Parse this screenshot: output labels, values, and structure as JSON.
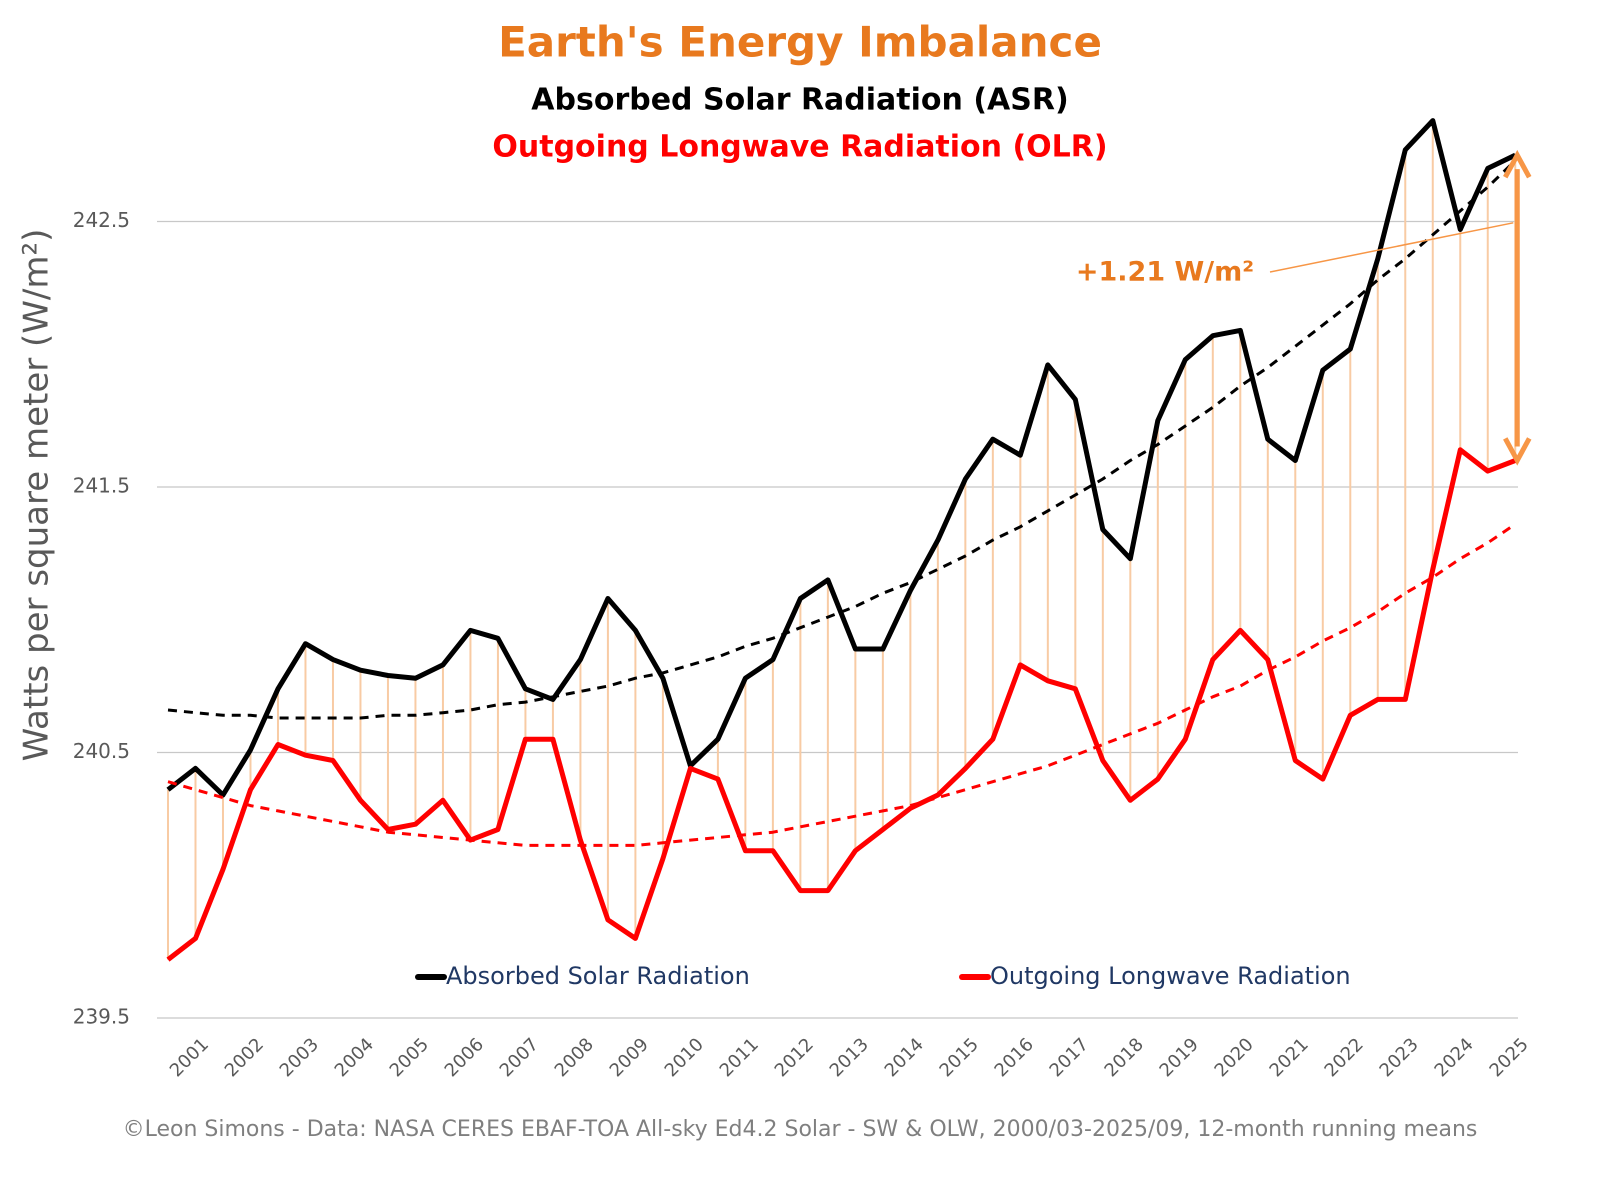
{
  "chart_data": {
    "type": "line",
    "title": "Earth's Energy Imbalance",
    "title_color": "#e8791e",
    "subtitles": [
      "Absorbed Solar Radiation (ASR)",
      "Outgoing Longwave Radiation (OLR)"
    ],
    "y_label": "Watts per square meter (W/m²)",
    "footer": "©Leon Simons - Data: NASA CERES EBAF-TOA All-sky Ed4.2 Solar - SW & OLW, 2000/03-2025/09, 12-month running means",
    "annotation": {
      "text": "+1.21 W/m²",
      "color": "#e8791e"
    },
    "x": [
      2000.75,
      2001.25,
      2001.75,
      2002.25,
      2002.75,
      2003.25,
      2003.75,
      2004.25,
      2004.75,
      2005.25,
      2005.75,
      2006.25,
      2006.75,
      2007.25,
      2007.75,
      2008.25,
      2008.75,
      2009.25,
      2009.75,
      2010.25,
      2010.75,
      2011.25,
      2011.75,
      2012.25,
      2012.75,
      2013.25,
      2013.75,
      2014.25,
      2014.75,
      2015.25,
      2015.75,
      2016.25,
      2016.75,
      2017.25,
      2017.75,
      2018.25,
      2018.75,
      2019.25,
      2019.75,
      2020.25,
      2020.75,
      2021.25,
      2021.75,
      2022.25,
      2022.75,
      2023.25,
      2023.75,
      2024.25,
      2024.75,
      2025.25
    ],
    "series": [
      {
        "name": "Absorbed Solar Radiation",
        "color": "#000000",
        "values": [
          240.36,
          240.44,
          240.34,
          240.51,
          240.74,
          240.91,
          240.85,
          240.81,
          240.79,
          240.78,
          240.83,
          240.96,
          240.93,
          240.74,
          240.7,
          240.85,
          241.08,
          240.96,
          240.78,
          240.45,
          240.55,
          240.78,
          240.85,
          241.08,
          241.15,
          240.89,
          240.89,
          241.11,
          241.3,
          241.53,
          241.68,
          241.62,
          241.96,
          241.83,
          241.34,
          241.23,
          241.75,
          241.98,
          242.07,
          242.09,
          241.68,
          241.6,
          241.94,
          242.02,
          242.36,
          242.77,
          242.88,
          242.47,
          242.7,
          242.75
        ]
      },
      {
        "name": "Outgoing Longwave Radiation",
        "color": "#ff0000",
        "values": [
          239.72,
          239.8,
          240.06,
          240.36,
          240.53,
          240.49,
          240.47,
          240.32,
          240.21,
          240.23,
          240.32,
          240.17,
          240.21,
          240.55,
          240.55,
          240.17,
          239.87,
          239.8,
          240.1,
          240.44,
          240.4,
          240.13,
          240.13,
          239.98,
          239.98,
          240.13,
          240.21,
          240.29,
          240.34,
          240.44,
          240.55,
          240.83,
          240.77,
          240.74,
          240.47,
          240.32,
          240.4,
          240.55,
          240.85,
          240.96,
          240.85,
          240.47,
          240.4,
          240.64,
          240.7,
          240.7,
          241.19,
          241.64,
          241.56,
          241.6
        ]
      },
      {
        "color": "#000000",
        "dash": true,
        "values": [
          240.66,
          240.65,
          240.64,
          240.64,
          240.63,
          240.63,
          240.63,
          240.63,
          240.64,
          240.64,
          240.65,
          240.66,
          240.68,
          240.69,
          240.71,
          240.73,
          240.75,
          240.78,
          240.8,
          240.83,
          240.86,
          240.9,
          240.93,
          240.97,
          241.01,
          241.05,
          241.1,
          241.14,
          241.19,
          241.24,
          241.3,
          241.35,
          241.41,
          241.47,
          241.53,
          241.6,
          241.66,
          241.73,
          241.8,
          241.88,
          241.95,
          242.03,
          242.11,
          242.19,
          242.28,
          242.36,
          242.45,
          242.54,
          242.63,
          242.73
        ]
      },
      {
        "color": "#ff0000",
        "dash": true,
        "values": [
          240.39,
          240.36,
          240.33,
          240.3,
          240.28,
          240.26,
          240.24,
          240.22,
          240.2,
          240.19,
          240.18,
          240.17,
          240.16,
          240.15,
          240.15,
          240.15,
          240.15,
          240.15,
          240.16,
          240.17,
          240.18,
          240.19,
          240.2,
          240.22,
          240.24,
          240.26,
          240.28,
          240.3,
          240.33,
          240.36,
          240.39,
          240.42,
          240.45,
          240.49,
          240.53,
          240.57,
          240.61,
          240.66,
          240.71,
          240.75,
          240.81,
          240.86,
          240.92,
          240.97,
          241.03,
          241.1,
          241.16,
          241.23,
          241.29,
          241.36
        ]
      }
    ],
    "fill_color": "#f8cba4",
    "xlim": [
      2000.55,
      2025.3
    ],
    "xticks": [
      2001,
      2002,
      2003,
      2004,
      2005,
      2006,
      2007,
      2008,
      2009,
      2010,
      2011,
      2012,
      2013,
      2014,
      2015,
      2016,
      2017,
      2018,
      2019,
      2020,
      2021,
      2022,
      2023,
      2024,
      2025
    ],
    "ylim": [
      239.5,
      243.05
    ],
    "yticks": [
      239.5,
      240.5,
      241.5,
      242.5
    ],
    "grid": true,
    "legend": "bottom"
  }
}
